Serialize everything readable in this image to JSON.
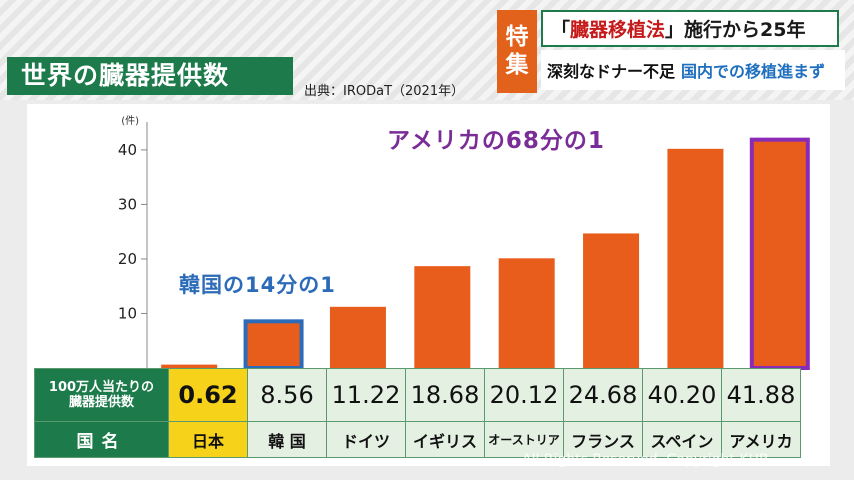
{
  "banner": {
    "badge_line1": "特",
    "badge_line2": "集",
    "headline_prefix": "「",
    "headline_accent": "臓器移植法",
    "headline_suffix": "」施行から25年",
    "subline_a": "深刻なドナー不足",
    "subline_b": "国内での移植進まず"
  },
  "title": "世界の臓器提供数",
  "source": "出典：IRODaT（2021年）",
  "chart_data": {
    "type": "bar",
    "unit": "(件)",
    "categories": [
      "日本",
      "韓国",
      "ドイツ",
      "イギリス",
      "オーストリア",
      "フランス",
      "スペイン",
      "アメリカ"
    ],
    "values": [
      0.62,
      8.56,
      11.22,
      18.68,
      20.12,
      24.68,
      40.2,
      41.88
    ],
    "yticks": [
      10,
      20,
      30,
      40
    ],
    "ylim": [
      0,
      42
    ],
    "bar_color": "#e85d1c",
    "highlights": {
      "韓国": "#2b6bb8",
      "アメリカ": "#8a2bb8"
    },
    "annotations": [
      "アメリカの68分の1",
      "韓国の14分の1"
    ]
  },
  "table": {
    "row1_header": "100万人当たりの\n臓器提供数",
    "row2_header": "国名",
    "value_labels": [
      "0.62",
      "8.56",
      "11.22",
      "18.68",
      "20.12",
      "24.68",
      "40.20",
      "41.88"
    ],
    "country_labels": [
      "日本",
      "韓 国",
      "ドイツ",
      "イギリス",
      "オーストリア",
      "フランス",
      "スペイン",
      "アメリカ"
    ]
  },
  "copyright": "All Rights Reserved. Copyright KHB"
}
